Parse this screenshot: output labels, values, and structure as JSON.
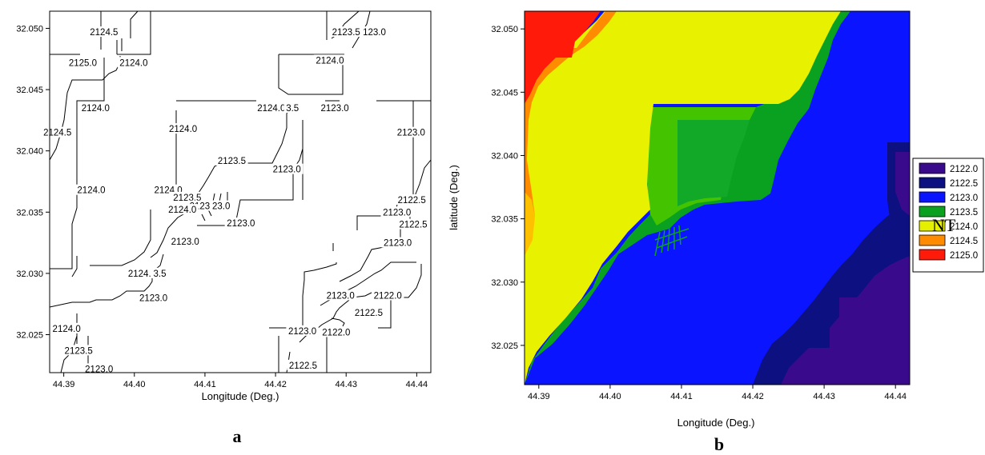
{
  "chart_data": [
    {
      "type": "contour",
      "panel": "a",
      "xlabel": "Longitude (Deg.)",
      "ylabel": "",
      "xlim": [
        44.388,
        44.442
      ],
      "ylim": [
        32.0219,
        32.0514
      ],
      "xticks": [
        "44.39",
        "44.40",
        "44.41",
        "44.42",
        "44.43",
        "44.44"
      ],
      "yticks": [
        "32.050",
        "32.045",
        "32.040",
        "32.035",
        "32.030",
        "32.025"
      ],
      "contour_labels": [
        {
          "text": "2125.0",
          "x": 44.3927,
          "y": 32.0472
        },
        {
          "text": "2124.5",
          "x": 44.3957,
          "y": 32.0497
        },
        {
          "text": "2124.0",
          "x": 44.3999,
          "y": 32.0472
        },
        {
          "text": "2124.0",
          "x": 44.3945,
          "y": 32.0435
        },
        {
          "text": "2124.5",
          "x": 44.3891,
          "y": 32.0415
        },
        {
          "text": "2124.0",
          "x": 44.4069,
          "y": 32.0418
        },
        {
          "text": "2124.0",
          "x": 44.4194,
          "y": 32.0435
        },
        {
          "text": "3.5",
          "x": 44.4224,
          "y": 32.0435
        },
        {
          "text": "2123.0",
          "x": 44.4284,
          "y": 32.0435
        },
        {
          "text": "2124.0",
          "x": 44.4277,
          "y": 32.0474
        },
        {
          "text": "2123.5",
          "x": 44.43,
          "y": 32.0497
        },
        {
          "text": "123.0",
          "x": 44.434,
          "y": 32.0497
        },
        {
          "text": "2123.0",
          "x": 44.4392,
          "y": 32.0415
        },
        {
          "text": "2123.5",
          "x": 44.4138,
          "y": 32.0392
        },
        {
          "text": "2123.0",
          "x": 44.4216,
          "y": 32.0385
        },
        {
          "text": "2124.0",
          "x": 44.3939,
          "y": 32.0368
        },
        {
          "text": "2124.0",
          "x": 44.4048,
          "y": 32.0368
        },
        {
          "text": "2123.5",
          "x": 44.4075,
          "y": 32.0362
        },
        {
          "text": "2123.5",
          "x": 44.4098,
          "y": 32.0355
        },
        {
          "text": "23.0",
          "x": 44.4123,
          "y": 32.0355
        },
        {
          "text": "2124.0",
          "x": 44.4068,
          "y": 32.0352
        },
        {
          "text": "2123.0",
          "x": 44.4151,
          "y": 32.0341
        },
        {
          "text": "2123.0",
          "x": 44.4072,
          "y": 32.0326
        },
        {
          "text": "2122.5",
          "x": 44.4393,
          "y": 32.036
        },
        {
          "text": "2123.0",
          "x": 44.4372,
          "y": 32.035
        },
        {
          "text": "2122.5",
          "x": 44.4395,
          "y": 32.034
        },
        {
          "text": "2123.0",
          "x": 44.4373,
          "y": 32.0325
        },
        {
          "text": "2124.0",
          "x": 44.4011,
          "y": 32.03
        },
        {
          "text": "3.5",
          "x": 44.4036,
          "y": 32.03
        },
        {
          "text": "2123.0",
          "x": 44.4027,
          "y": 32.028
        },
        {
          "text": "2123.0",
          "x": 44.4292,
          "y": 32.0282
        },
        {
          "text": "2122.0",
          "x": 44.4359,
          "y": 32.0282
        },
        {
          "text": "2122.5",
          "x": 44.4332,
          "y": 32.0268
        },
        {
          "text": "2124.0",
          "x": 44.3904,
          "y": 32.0255
        },
        {
          "text": "2123.0",
          "x": 44.4238,
          "y": 32.0253
        },
        {
          "text": "2122.0",
          "x": 44.4286,
          "y": 32.0252
        },
        {
          "text": "2123.5",
          "x": 44.3921,
          "y": 32.0237
        },
        {
          "text": "2123.0",
          "x": 44.395,
          "y": 32.0222
        },
        {
          "text": "2122.5",
          "x": 44.4239,
          "y": 32.0225
        }
      ]
    },
    {
      "type": "filled-contour",
      "panel": "b",
      "xlabel": "Longitude (Deg.)",
      "ylabel": "latitude (Deg.)",
      "xlim": [
        44.388,
        44.442
      ],
      "ylim": [
        32.0219,
        32.0514
      ],
      "xticks": [
        "44.39",
        "44.40",
        "44.41",
        "44.42",
        "44.43",
        "44.44"
      ],
      "yticks": [
        "32.050",
        "32.045",
        "32.040",
        "32.035",
        "32.030",
        "32.025"
      ],
      "legend": [
        {
          "label": "2122.0",
          "color": "#3a0a8c"
        },
        {
          "label": "2122.5",
          "color": "#0c1080"
        },
        {
          "label": "2123.0",
          "color": "#0a14ff"
        },
        {
          "label": "2123.5",
          "color": "#0aa020"
        },
        {
          "label": "2124.0",
          "color": "#e4f000"
        },
        {
          "label": "2124.5",
          "color": "#ff8c00"
        },
        {
          "label": "2125.0",
          "color": "#ff1a0a"
        }
      ],
      "legend_placement": "right",
      "overlay_text": "NT"
    }
  ],
  "panel_labels": {
    "a": "a",
    "b": "b"
  }
}
